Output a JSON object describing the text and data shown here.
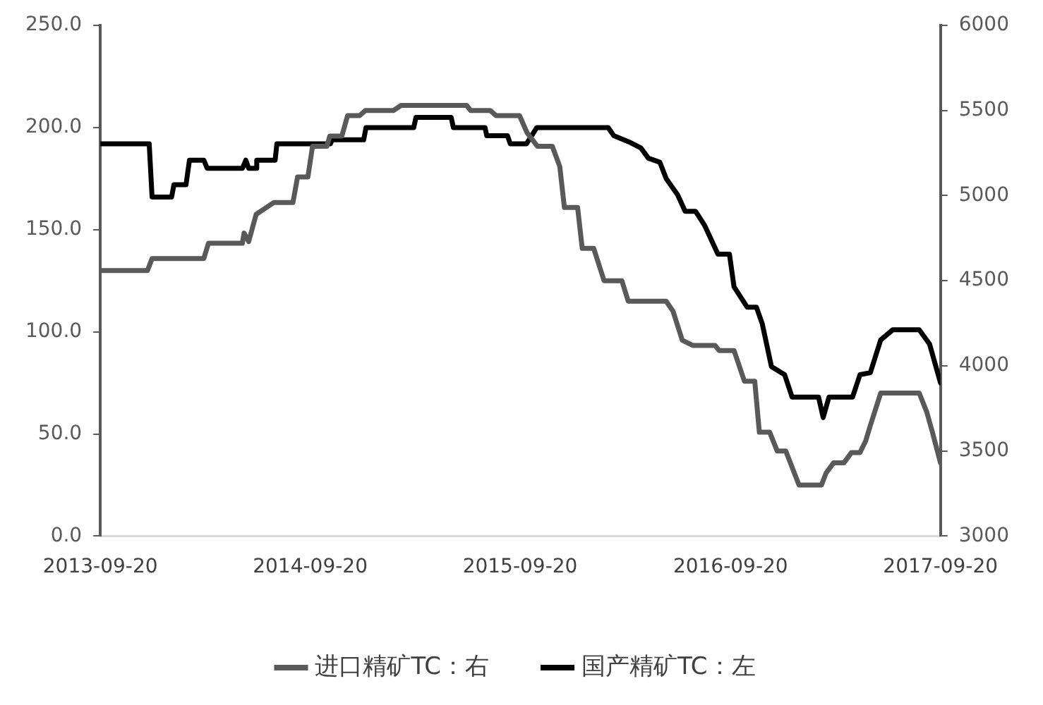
{
  "chart_data": {
    "type": "line",
    "legend": "bottom",
    "grid": false,
    "marker": "none",
    "line_style": "solid",
    "xlim": [
      "2013-09-20",
      "2017-09-20"
    ],
    "xticks": [
      "2013-09-20",
      "2014-09-20",
      "2015-09-20",
      "2016-09-20",
      "2017-09-20"
    ],
    "ylim": [
      0,
      250
    ],
    "yticks": [
      {
        "value": 0,
        "label": "0.0"
      },
      {
        "value": 50,
        "label": "50.0"
      },
      {
        "value": 100,
        "label": "100.0"
      },
      {
        "value": 150,
        "label": "150.0"
      },
      {
        "value": 200,
        "label": "200.0"
      },
      {
        "value": 250,
        "label": "250.0"
      }
    ],
    "y2lim": [
      3000,
      6000
    ],
    "y2ticks": [
      3000,
      3500,
      4000,
      4500,
      5000,
      5500,
      6000
    ],
    "series": [
      {
        "name": "进口精矿TC：右",
        "color": "#595959",
        "axis": "y2",
        "x": [
          "2013-09-20",
          "2013-12-11",
          "2013-12-19",
          "2014-03-19",
          "2014-03-27",
          "2014-05-25",
          "2014-05-28",
          "2014-06-05",
          "2014-06-18",
          "2014-07-19",
          "2014-08-21",
          "2014-08-29",
          "2014-09-16",
          "2014-09-24",
          "2014-10-19",
          "2014-10-24",
          "2014-11-14",
          "2014-11-24",
          "2014-12-15",
          "2014-12-25",
          "2015-02-12",
          "2015-02-25",
          "2015-06-19",
          "2015-06-26",
          "2015-07-30",
          "2015-08-09",
          "2015-09-19",
          "2015-10-02",
          "2015-10-20",
          "2015-11-15",
          "2015-11-28",
          "2015-12-06",
          "2015-12-29",
          "2016-01-06",
          "2016-01-26",
          "2016-02-13",
          "2016-03-15",
          "2016-03-26",
          "2016-05-31",
          "2016-06-12",
          "2016-06-28",
          "2016-07-16",
          "2016-08-24",
          "2016-08-31",
          "2016-09-26",
          "2016-10-14",
          "2016-11-01",
          "2016-11-09",
          "2016-11-27",
          "2016-12-10",
          "2016-12-25",
          "2017-01-17",
          "2017-02-25",
          "2017-03-05",
          "2017-03-18",
          "2017-04-05",
          "2017-04-18",
          "2017-05-03",
          "2017-05-13",
          "2017-05-21",
          "2017-06-08",
          "2017-08-14",
          "2017-08-27",
          "2017-09-06",
          "2017-09-20"
        ],
        "values": [
          4560,
          4560,
          4630,
          4630,
          4720,
          4720,
          4780,
          4730,
          4890,
          4960,
          4960,
          5110,
          5110,
          5290,
          5290,
          5350,
          5350,
          5470,
          5470,
          5500,
          5500,
          5530,
          5530,
          5500,
          5500,
          5470,
          5470,
          5370,
          5290,
          5290,
          5170,
          4930,
          4930,
          4690,
          4690,
          4500,
          4500,
          4380,
          4380,
          4320,
          4150,
          4120,
          4120,
          4090,
          4090,
          3910,
          3910,
          3610,
          3610,
          3500,
          3500,
          3300,
          3300,
          3370,
          3430,
          3430,
          3490,
          3490,
          3560,
          3650,
          3840,
          3840,
          3730,
          3610,
          3430
        ]
      },
      {
        "name": "国产精矿TC：左",
        "color": "#000000",
        "axis": "y",
        "x": [
          "2013-09-20",
          "2013-12-14",
          "2013-12-19",
          "2014-01-22",
          "2014-01-26",
          "2014-02-16",
          "2014-02-22",
          "2014-03-19",
          "2014-03-25",
          "2014-05-25",
          "2014-05-31",
          "2014-06-05",
          "2014-06-17",
          "2014-06-19",
          "2014-07-21",
          "2014-07-24",
          "2014-10-25",
          "2014-10-28",
          "2014-12-22",
          "2014-12-26",
          "2015-03-19",
          "2015-03-23",
          "2015-05-23",
          "2015-05-27",
          "2015-07-21",
          "2015-07-24",
          "2015-08-29",
          "2015-09-03",
          "2015-10-01",
          "2015-10-19",
          "2016-02-20",
          "2016-03-01",
          "2016-03-27",
          "2016-04-17",
          "2016-04-30",
          "2016-05-20",
          "2016-05-31",
          "2016-06-20",
          "2016-07-03",
          "2016-07-21",
          "2016-08-06",
          "2016-08-29",
          "2016-09-18",
          "2016-09-26",
          "2016-10-19",
          "2016-11-04",
          "2016-11-14",
          "2016-11-30",
          "2016-12-23",
          "2017-01-05",
          "2017-02-20",
          "2017-02-28",
          "2017-03-10",
          "2017-04-20",
          "2017-05-03",
          "2017-05-21",
          "2017-06-08",
          "2017-06-29",
          "2017-08-14",
          "2017-09-01",
          "2017-09-20"
        ],
        "values": [
          192,
          192,
          166,
          166,
          172,
          172,
          184,
          184,
          180,
          180,
          184,
          180,
          180,
          184,
          184,
          192,
          192,
          194,
          194,
          200,
          200,
          205,
          205,
          200,
          200,
          196,
          196,
          192,
          192,
          200,
          200,
          196,
          193,
          190,
          185,
          183,
          175,
          167,
          159,
          159,
          152,
          138,
          138,
          122,
          112,
          112,
          104,
          83,
          79,
          68,
          68,
          58,
          68,
          68,
          79,
          80,
          96,
          101,
          101,
          94,
          75
        ]
      }
    ]
  }
}
